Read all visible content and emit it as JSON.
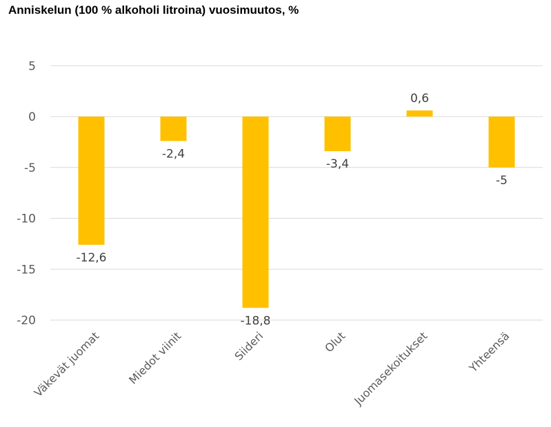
{
  "chart_data": {
    "type": "bar",
    "title": "Anniskelun (100 % alkoholi litroina) vuosimuutos, %",
    "categories": [
      "Väkevät juomat",
      "Miedot viinit",
      "Siideri",
      "Olut",
      "Juomasekoitukset",
      "Yhteensä"
    ],
    "values": [
      -12.6,
      -2.4,
      -18.8,
      -3.4,
      0.6,
      -5
    ],
    "data_labels": [
      "-12,6",
      "-2,4",
      "-18,8",
      "-3,4",
      "0,6",
      "-5"
    ],
    "yticks": [
      5,
      0,
      -5,
      -10,
      -15,
      -20
    ],
    "ylim": [
      -20,
      5
    ],
    "xlabel": "",
    "ylabel": "",
    "grid": true,
    "bar_color": "#FFC000"
  }
}
